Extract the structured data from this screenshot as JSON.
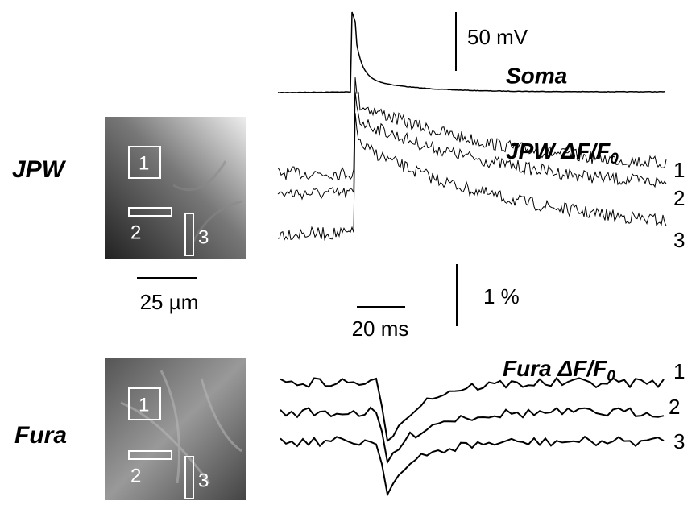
{
  "rows": [
    {
      "name": "JPW",
      "roi_labels": [
        "1",
        "2",
        "3"
      ],
      "scale_bar": "25 µm"
    },
    {
      "name": "Fura",
      "roi_labels": [
        "1",
        "2",
        "3"
      ]
    }
  ],
  "soma": {
    "label": "Soma",
    "scale_bar": "50 mV"
  },
  "jpw_traces": {
    "title": "JPW ΔF/F",
    "subscript": "0",
    "trace_labels": [
      "1",
      "2",
      "3"
    ],
    "scale_bar": "1 %",
    "time_bar": "20 ms"
  },
  "fura_traces": {
    "title": "Fura ΔF/F",
    "subscript": "0",
    "trace_labels": [
      "1",
      "2",
      "3"
    ]
  }
}
